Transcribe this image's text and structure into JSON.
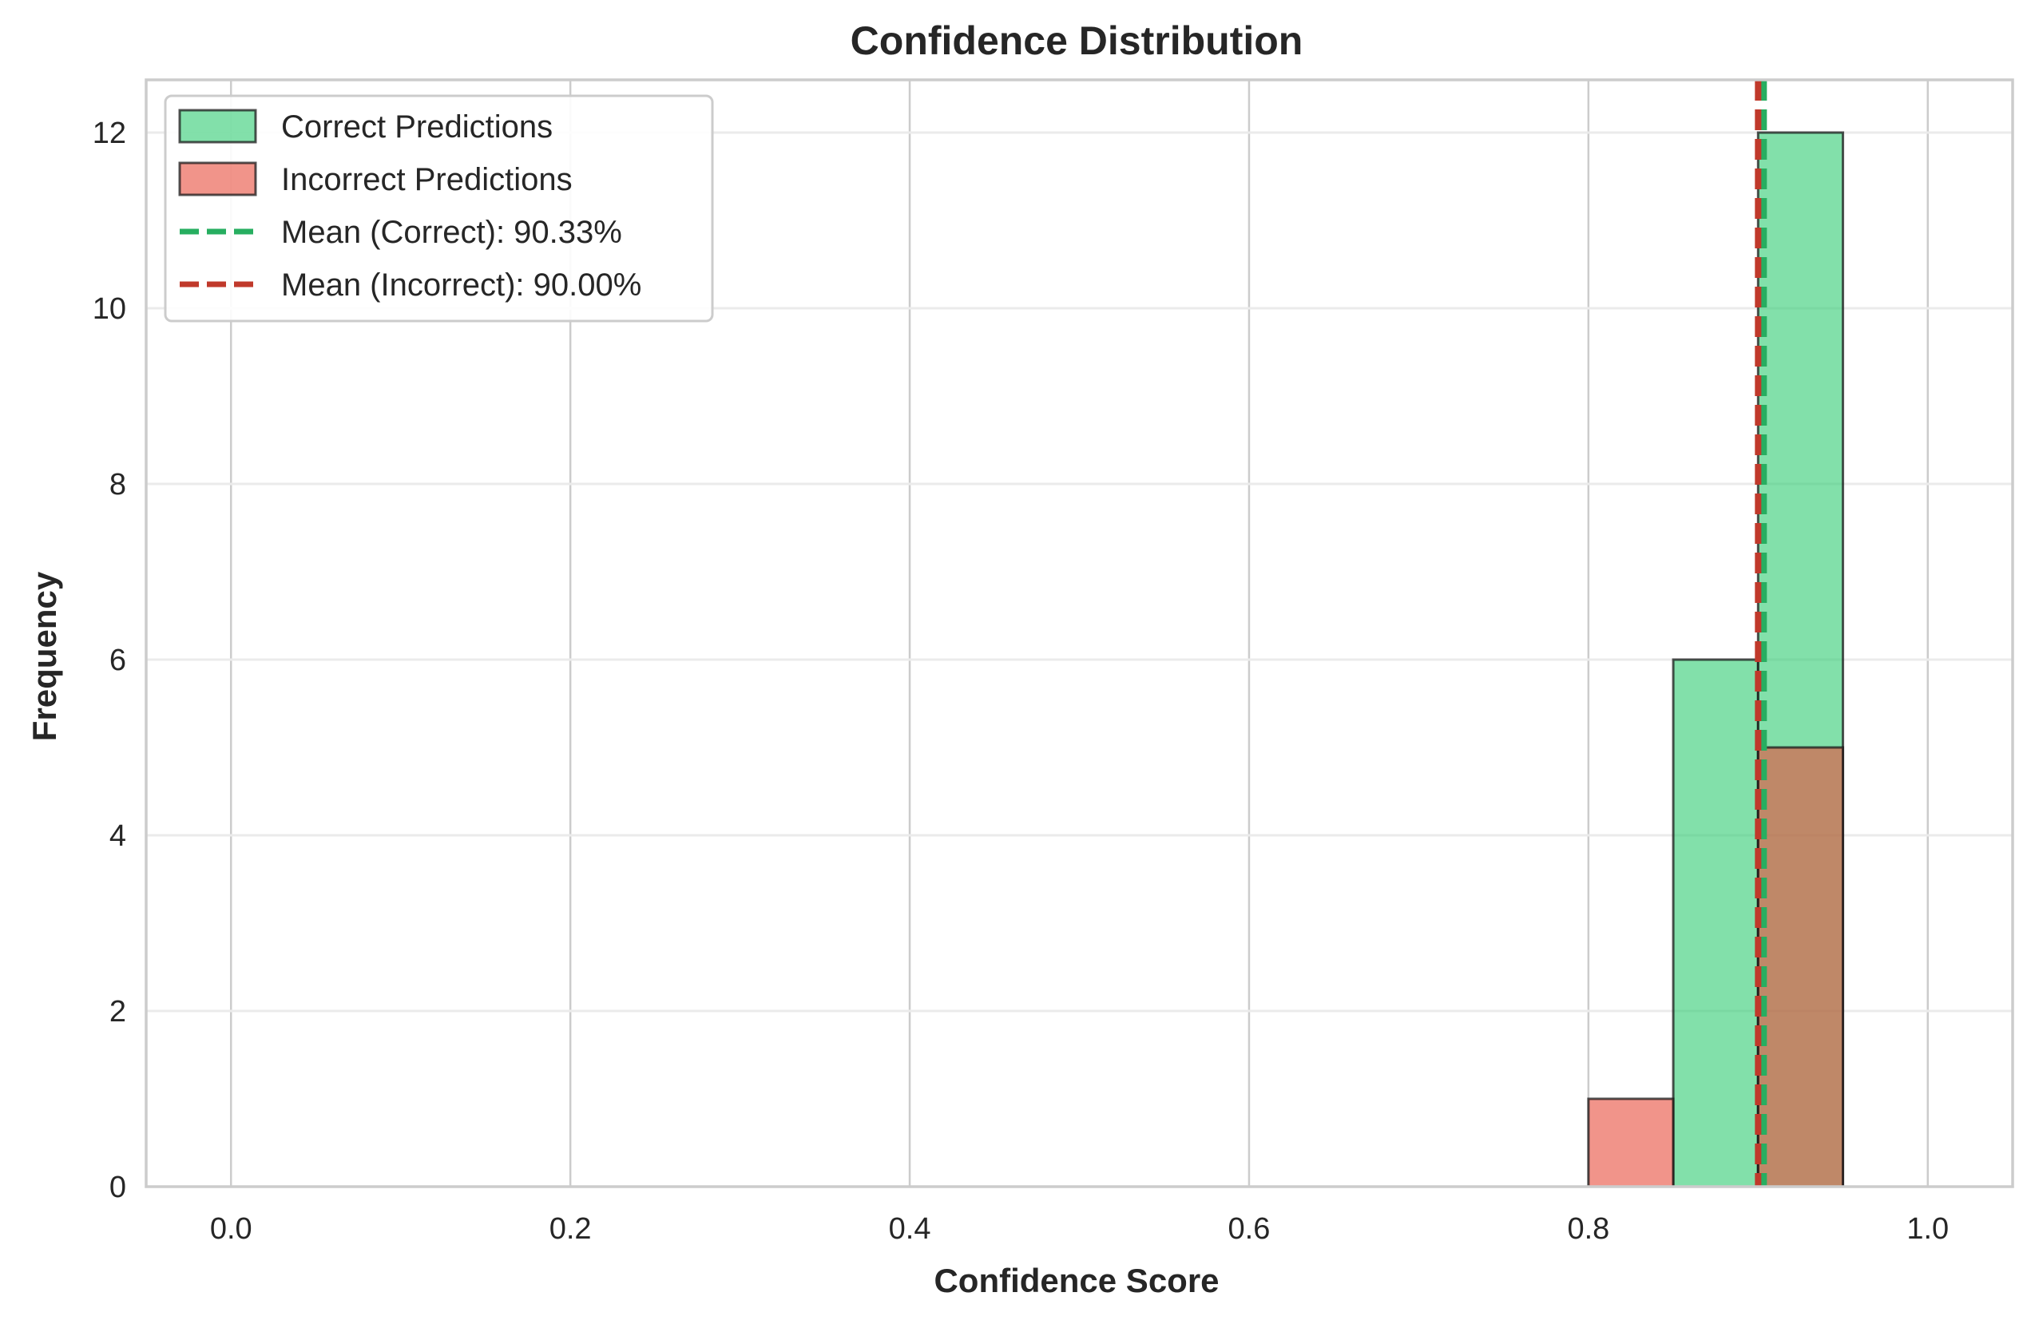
{
  "chart_data": {
    "type": "bar",
    "title": "Confidence Distribution",
    "xlabel": "Confidence Score",
    "ylabel": "Frequency",
    "xlim": [
      -0.05,
      1.05
    ],
    "ylim": [
      0,
      12.6
    ],
    "xticks": [
      "0.0",
      "0.2",
      "0.4",
      "0.6",
      "0.8",
      "1.0"
    ],
    "xtick_values": [
      0.0,
      0.2,
      0.4,
      0.6,
      0.8,
      1.0
    ],
    "yticks": [
      "0",
      "2",
      "4",
      "6",
      "8",
      "10",
      "12"
    ],
    "ytick_values": [
      0,
      2,
      4,
      6,
      8,
      10,
      12
    ],
    "grid": true,
    "legend_position": "top-left",
    "series": [
      {
        "name": "Correct Predictions",
        "color": "#2ecc71",
        "bins": [
          {
            "start": 0.85,
            "end": 0.9,
            "count": 6
          },
          {
            "start": 0.9,
            "end": 0.95,
            "count": 12
          }
        ]
      },
      {
        "name": "Incorrect Predictions",
        "color": "#e74c3c",
        "bins": [
          {
            "start": 0.8,
            "end": 0.85,
            "count": 1
          },
          {
            "start": 0.9,
            "end": 0.95,
            "count": 5
          }
        ]
      }
    ],
    "mean_lines": [
      {
        "name": "Mean (Correct): 90.33%",
        "value": 0.9033,
        "color": "#27ae60"
      },
      {
        "name": "Mean (Incorrect): 90.00%",
        "value": 0.9,
        "color": "#c0392b"
      }
    ]
  }
}
